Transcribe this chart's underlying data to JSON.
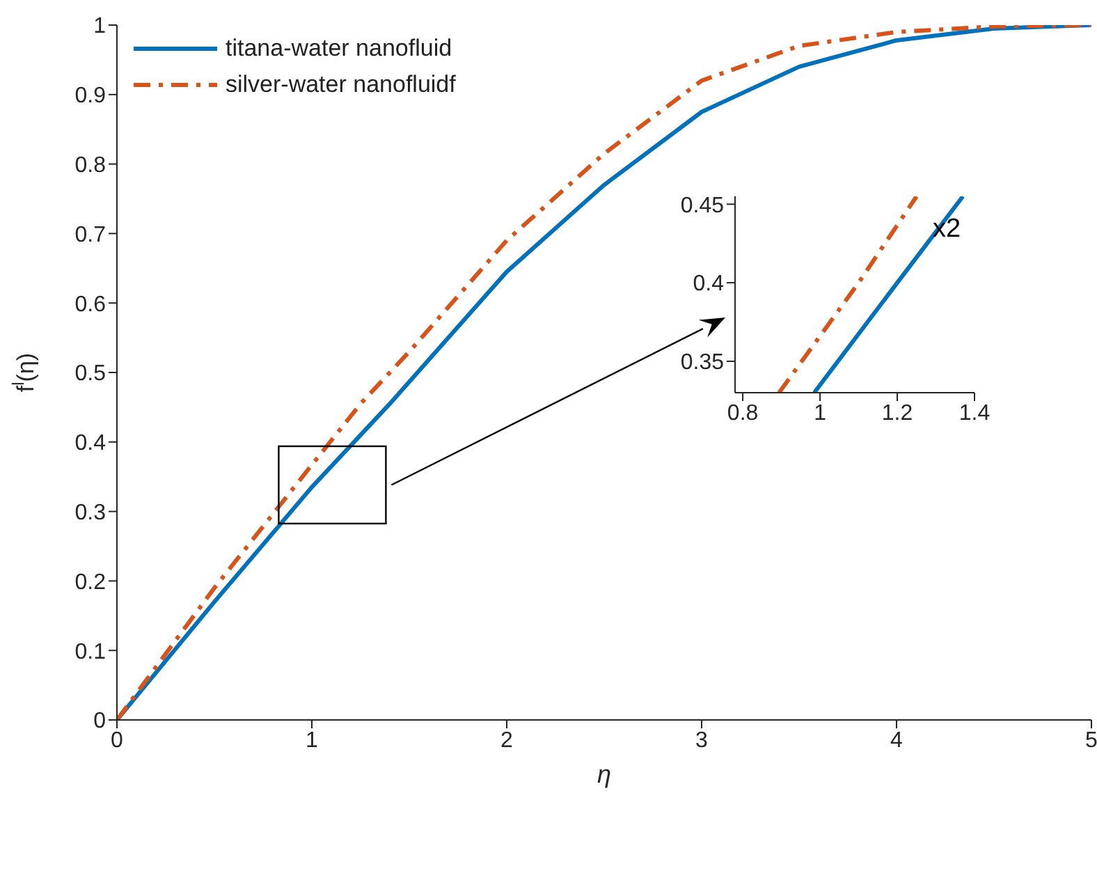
{
  "chart_data": [
    {
      "type": "line",
      "xlabel": "η",
      "ylabel": "f$^{l}$(η)",
      "xlim": [
        0,
        5
      ],
      "xticks": [
        0,
        1,
        2,
        3,
        4,
        5
      ],
      "ylim": [
        0,
        1
      ],
      "yticks": [
        0,
        0.1,
        0.2,
        0.3,
        0.4,
        0.5,
        0.6,
        0.7,
        0.8,
        0.9,
        1
      ],
      "legend": "top left",
      "marker": "none",
      "series": [
        {
          "name": "titana-water nanofluid",
          "color": "#0072bd",
          "line_style": "solid",
          "x": [
            0,
            0.5,
            1,
            1.4,
            2,
            2.5,
            3,
            3.5,
            4,
            4.5,
            5
          ],
          "values": [
            0,
            0.17,
            0.335,
            0.455,
            0.645,
            0.77,
            0.875,
            0.94,
            0.978,
            0.995,
            1
          ]
        },
        {
          "name": "silver-water nanofluidf",
          "color": "#d95319",
          "line_style": "dashed",
          "x": [
            0,
            0.5,
            1,
            1.25,
            1.5,
            2,
            2.5,
            3,
            3.5,
            4,
            4.5,
            5
          ],
          "values": [
            0,
            0.19,
            0.367,
            0.455,
            0.53,
            0.69,
            0.815,
            0.92,
            0.97,
            0.99,
            0.998,
            1
          ]
        }
      ]
    },
    {
      "type": "line",
      "xlim": [
        0.78,
        1.4
      ],
      "xticks": [
        0.8,
        1,
        1.2,
        1.4
      ],
      "ylim": [
        0.33,
        0.455
      ],
      "yticks": [
        0.35,
        0.4,
        0.45
      ],
      "annotations": [
        "x2"
      ],
      "marker": "none",
      "series": [
        {
          "color": "#0072bd",
          "line_style": "solid",
          "x": [
            0.985,
            1.2,
            1.37
          ],
          "values": [
            0.33,
            0.4,
            0.455
          ]
        },
        {
          "color": "#d95319",
          "line_style": "dashed",
          "x": [
            0.894,
            1.1,
            1.25
          ],
          "values": [
            0.33,
            0.4,
            0.455
          ]
        }
      ]
    }
  ]
}
